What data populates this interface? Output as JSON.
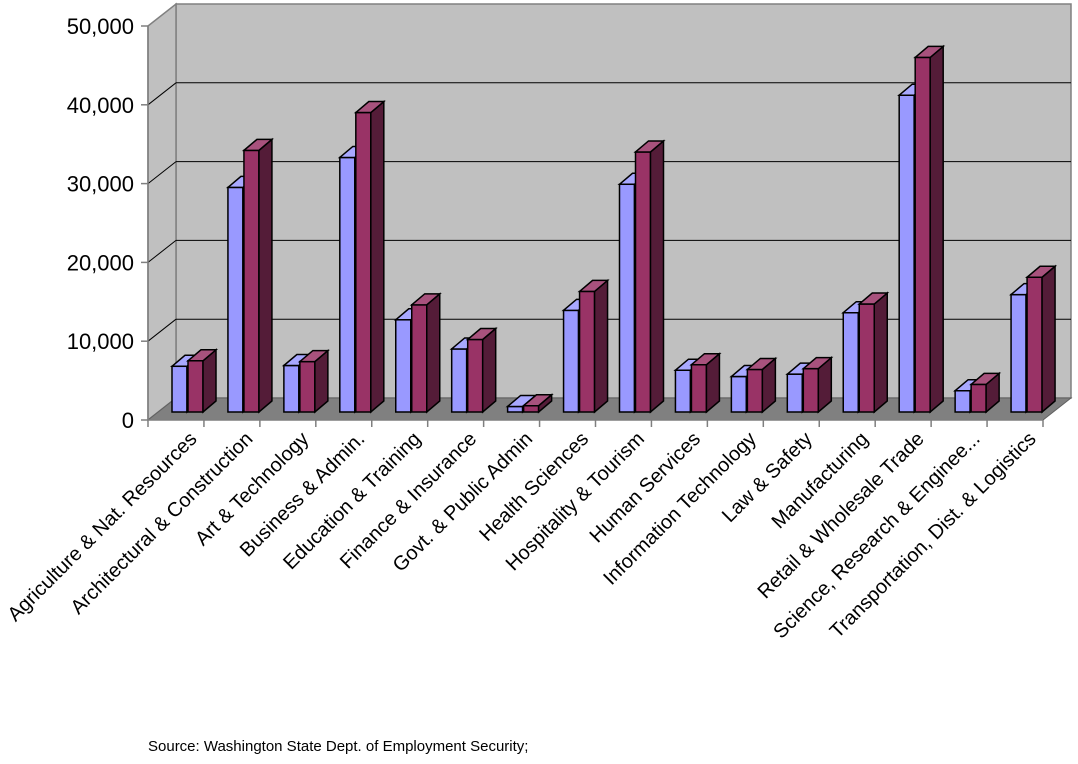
{
  "chart_data": {
    "type": "bar",
    "style": "3d-clustered-column",
    "title": "",
    "xlabel": "",
    "ylabel": "",
    "ylim": [
      0,
      50000
    ],
    "yticks": [
      "0",
      "10,000",
      "20,000",
      "30,000",
      "40,000",
      "50,000"
    ],
    "grid": true,
    "categories": [
      "Agriculture & Nat. Resources",
      "Architectural & Construction",
      "Art & Technology",
      "Business & Admin.",
      "Education & Training",
      "Finance & Insurance",
      "Govt. & Public Admin",
      "Health Sciences",
      "Hospitality & Tourism",
      "Human Services",
      "Information Technology",
      "Law & Safety",
      "Manufacturing",
      "Retail & Wholesale Trade",
      "Science, Research & Enginee...",
      "Transportation, Dist. & Logistics"
    ],
    "series": [
      {
        "color": "#9999ff",
        "values": [
          5800,
          28500,
          5900,
          32300,
          11700,
          8000,
          700,
          12900,
          28900,
          5300,
          4500,
          4800,
          12600,
          40200,
          2700,
          14900
        ]
      },
      {
        "color": "#993366",
        "values": [
          6500,
          33200,
          6400,
          38000,
          13600,
          9200,
          800,
          15300,
          33000,
          6000,
          5400,
          5500,
          13700,
          45000,
          3500,
          17100
        ]
      }
    ],
    "source": "Source:  Washington State Dept. of Employment Security;"
  }
}
